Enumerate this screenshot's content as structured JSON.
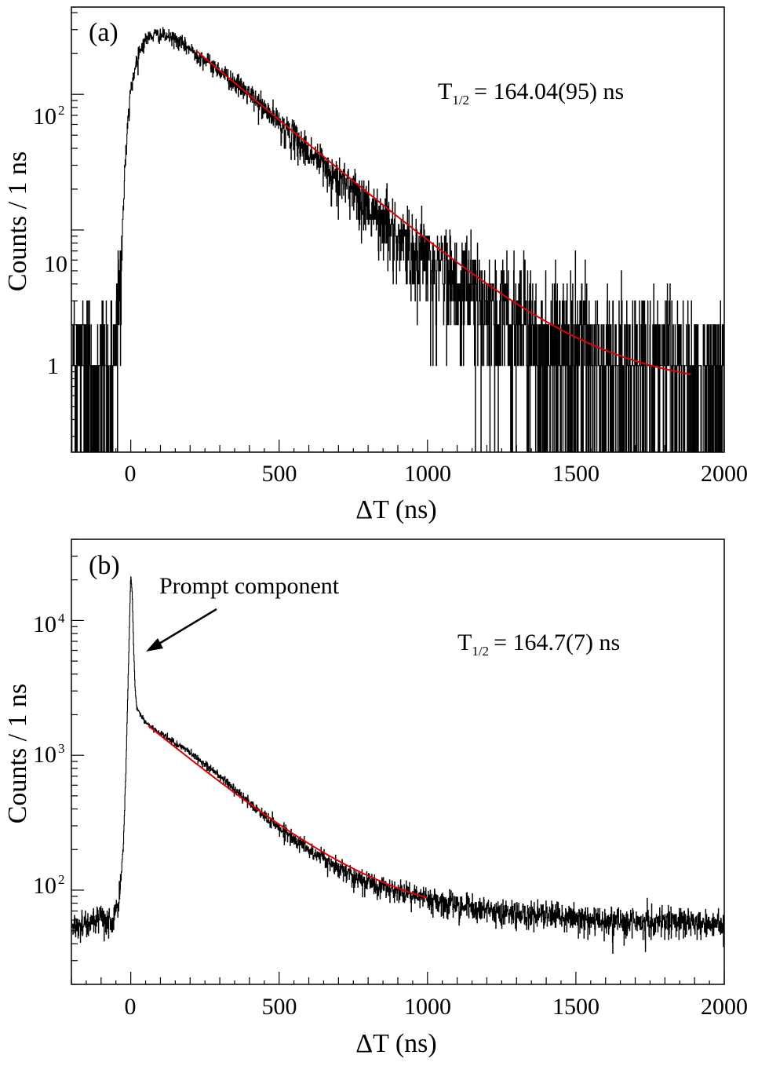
{
  "chart_data": [
    {
      "type": "histogram",
      "panel_label": "(a)",
      "title": "",
      "xlabel": "ΔT (ns)",
      "ylabel": "Counts / 1 ns",
      "xlim": [
        -200,
        2000
      ],
      "ylim": [
        0.23,
        440
      ],
      "y_scale": "log",
      "x_tick_labels": [
        "0",
        "500",
        "1000",
        "1500",
        "2000"
      ],
      "x_ticks": [
        0,
        500,
        1000,
        1500,
        2000
      ],
      "y_ticks": [
        {
          "value": 1,
          "base": "1",
          "exp": ""
        },
        {
          "value": 10,
          "base": "10",
          "exp": ""
        },
        {
          "value": 100,
          "base": "10",
          "exp": "2"
        }
      ],
      "annotation": {
        "symbol": "T",
        "subscript": "1/2",
        "text": "= 164.04(95) ns"
      },
      "series": [
        {
          "name": "data",
          "color": "#000000",
          "description_points": {
            "x": [
              -200,
              -60,
              -45,
              -30,
              -15,
              0,
              25,
              50,
              80,
              100,
              150,
              200,
              300,
              400,
              500,
              600,
              700,
              800,
              900,
              1000,
              1100,
              1200,
              1300,
              1400,
              1500,
              1600,
              1700,
              1800,
              1900,
              2000
            ],
            "y": [
              1,
              1,
              2.5,
              8,
              40,
              110,
              200,
              255,
              275,
              275,
              255,
              215,
              150,
              100,
              62,
              38,
              24,
              15,
              9.5,
              6.3,
              4.1,
              3.0,
              2.2,
              1.7,
              1.4,
              1.2,
              1.05,
              1.0,
              1.0,
              1.0
            ]
          },
          "background_level": 1
        },
        {
          "name": "fit",
          "color": "#e00000",
          "x_range": [
            220,
            1890
          ],
          "half_life_ns": 164.04,
          "background": 0.68,
          "amplitude_at_start": 210
        }
      ]
    },
    {
      "type": "histogram",
      "panel_label": "(b)",
      "title": "",
      "xlabel": "ΔT (ns)",
      "ylabel": "Counts / 1 ns",
      "xlim": [
        -200,
        2000
      ],
      "ylim": [
        20,
        40000
      ],
      "y_scale": "log",
      "x_tick_labels": [
        "0",
        "500",
        "1000",
        "1500",
        "2000"
      ],
      "x_ticks": [
        0,
        500,
        1000,
        1500,
        2000
      ],
      "y_ticks": [
        {
          "value": 100,
          "base": "10",
          "exp": "2"
        },
        {
          "value": 1000,
          "base": "10",
          "exp": "3"
        },
        {
          "value": 10000,
          "base": "10",
          "exp": "4"
        }
      ],
      "annotation": {
        "symbol": "T",
        "subscript": "1/2",
        "text": "= 164.7(7) ns"
      },
      "arrow_label": "Prompt component",
      "series": [
        {
          "name": "data",
          "color": "#000000",
          "description_points": {
            "x": [
              -200,
              -60,
              -40,
              -25,
              -15,
              -5,
              0,
              5,
              10,
              15,
              20,
              30,
              40,
              50,
              100,
              200,
              300,
              400,
              500,
              600,
              700,
              800,
              900,
              1000,
              1100,
              1200,
              1400,
              1600,
              1800,
              2000
            ],
            "y": [
              55,
              60,
              80,
              200,
              1000,
              8000,
              22000,
              16000,
              6000,
              3000,
              2300,
              2050,
              1900,
              1750,
              1450,
              1050,
              700,
              440,
              290,
              200,
              145,
              115,
              98,
              88,
              78,
              70,
              64,
              60,
              58,
              57
            ]
          },
          "background_level": 57
        },
        {
          "name": "fit",
          "color": "#e00000",
          "x_range": [
            60,
            1000
          ],
          "half_life_ns": 164.7,
          "background": 57,
          "amplitude_at_start": 1650
        }
      ]
    }
  ]
}
